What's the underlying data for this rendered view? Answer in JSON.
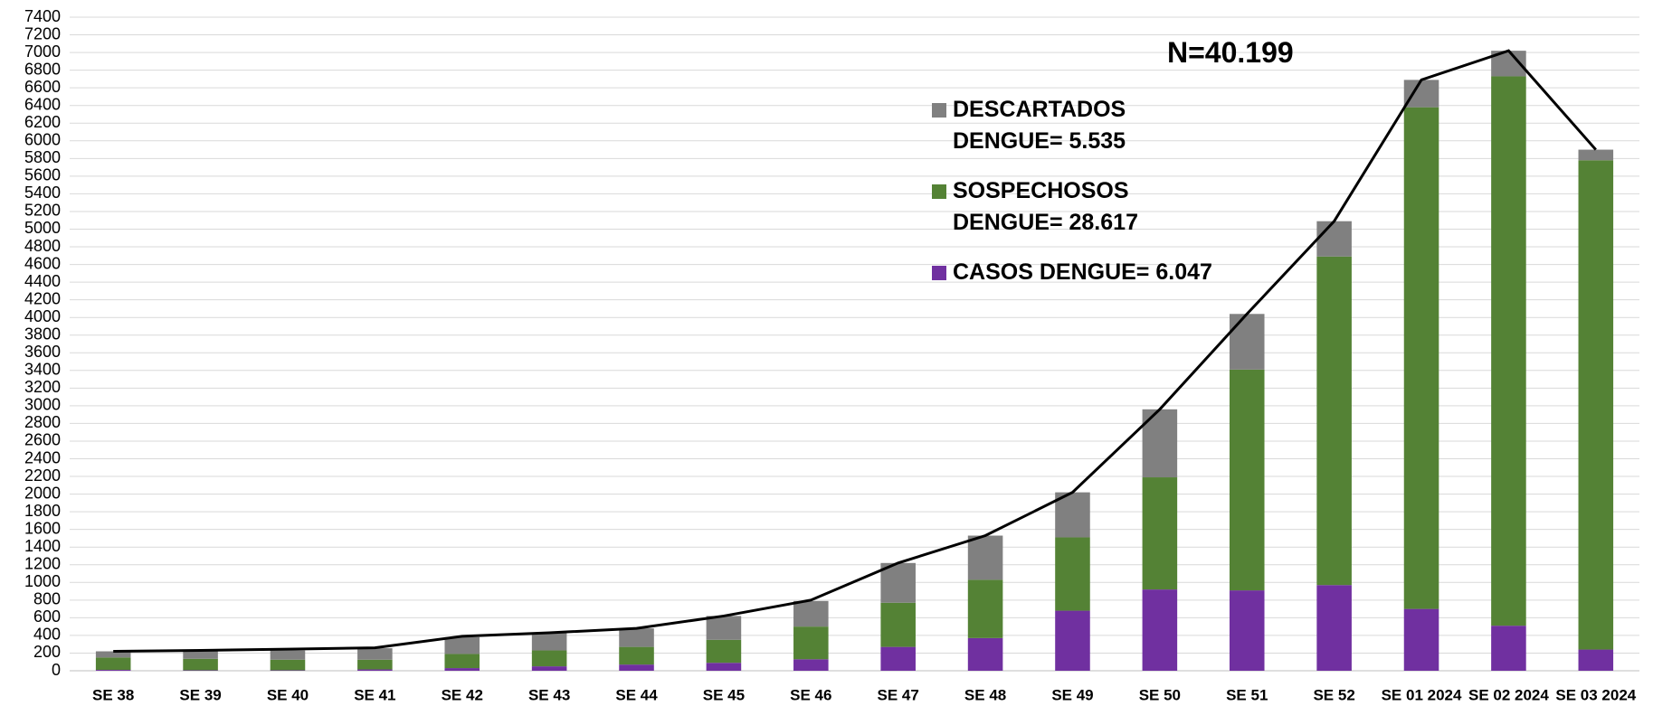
{
  "chart_data": {
    "type": "stacked_bar_line",
    "annotation": "N=40.199",
    "categories": [
      "SE 38",
      "SE 39",
      "SE 40",
      "SE 41",
      "SE 42",
      "SE 43",
      "SE 44",
      "SE 45",
      "SE 46",
      "SE 47",
      "SE 48",
      "SE 49",
      "SE 50",
      "SE 51",
      "SE 52",
      "SE 01 2024",
      "SE 02 2024",
      "SE 03 2024"
    ],
    "series": [
      {
        "name": "CASOS DENGUE= 6.047",
        "color": "#7030a0",
        "values": [
          10,
          5,
          5,
          15,
          30,
          50,
          70,
          90,
          130,
          270,
          370,
          680,
          920,
          910,
          970,
          700,
          510,
          240
        ]
      },
      {
        "name": "SOSPECHOSOS DENGUE= 28.617",
        "color": "#548235",
        "values": [
          140,
          130,
          120,
          110,
          160,
          180,
          200,
          260,
          370,
          500,
          660,
          830,
          1270,
          2500,
          3720,
          5680,
          6220,
          5540
        ]
      },
      {
        "name": "DESCARTADOS DENGUE= 5.535",
        "color": "#808080",
        "values": [
          70,
          85,
          105,
          130,
          190,
          200,
          210,
          270,
          290,
          450,
          500,
          510,
          770,
          630,
          400,
          310,
          290,
          120
        ]
      }
    ],
    "total_line": {
      "color": "#000000",
      "values": [
        220,
        230,
        245,
        260,
        390,
        430,
        480,
        620,
        800,
        1220,
        1530,
        2020,
        2960,
        4040,
        5090,
        6690,
        7020,
        5900
      ]
    },
    "ylim": [
      0,
      7400
    ],
    "yticks": [
      0,
      200,
      400,
      600,
      800,
      1000,
      1200,
      1400,
      1600,
      1800,
      2000,
      2200,
      2400,
      2600,
      2800,
      3000,
      3200,
      3400,
      3600,
      3800,
      4000,
      4200,
      4400,
      4600,
      4800,
      5000,
      5200,
      5400,
      5600,
      5800,
      6000,
      6200,
      6400,
      6600,
      6800,
      7000,
      7200,
      7400
    ],
    "grid": true
  }
}
